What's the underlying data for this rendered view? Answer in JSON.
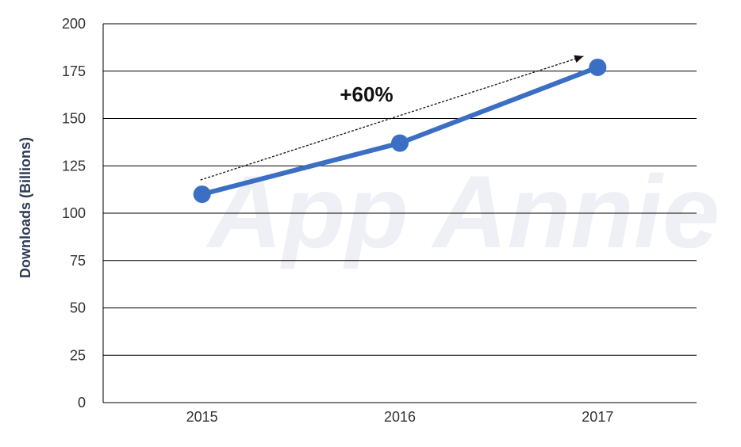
{
  "chart_data": {
    "type": "line",
    "title": "",
    "xlabel": "",
    "ylabel": "Downloads (Billions)",
    "categories": [
      "2015",
      "2016",
      "2017"
    ],
    "series": [
      {
        "values": [
          110,
          137,
          177
        ]
      }
    ],
    "ylim": [
      0,
      200
    ],
    "yticks": [
      0,
      25,
      50,
      75,
      100,
      125,
      150,
      175,
      200
    ],
    "grid": true,
    "annotation": "+60%",
    "watermark": "App Annie",
    "colors": {
      "line": "#3a6fc4",
      "marker": "#3a6fc4",
      "grid": "#000000",
      "arrow": "#111111"
    }
  }
}
